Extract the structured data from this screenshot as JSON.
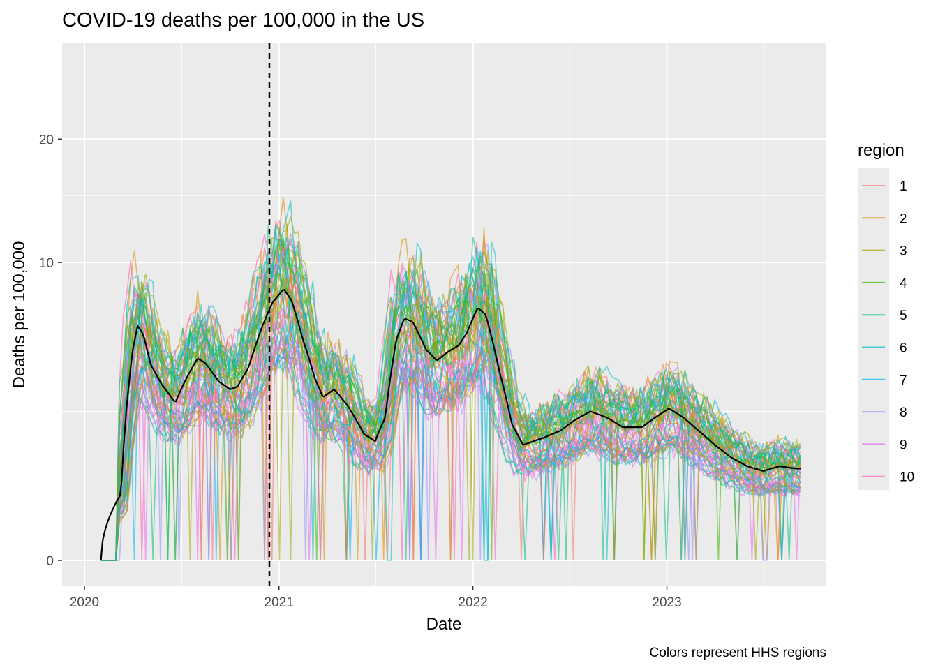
{
  "chart_data": {
    "type": "line",
    "title": "COVID-19 deaths per 100,000 in the US",
    "xlabel": "Date",
    "ylabel": "Deaths per 100,000",
    "caption": "Colors represent HHS regions",
    "x_scale": "date",
    "y_scale": "sqrt",
    "xlim": [
      "2019-11-20",
      "2023-10-28"
    ],
    "ylim": [
      0,
      26.5
    ],
    "x_ticks": [
      {
        "value": "2020-01-01",
        "label": "2020"
      },
      {
        "value": "2021-01-01",
        "label": "2021"
      },
      {
        "value": "2022-01-01",
        "label": "2022"
      },
      {
        "value": "2023-01-01",
        "label": "2023"
      }
    ],
    "y_ticks": [
      {
        "value": 0,
        "label": "0"
      },
      {
        "value": 10,
        "label": "10"
      },
      {
        "value": 20,
        "label": "20"
      }
    ],
    "grid": true,
    "reference_line": {
      "date": "2020-12-14",
      "style": "dashed"
    },
    "legend": {
      "title": "region",
      "position": "right",
      "entries": [
        {
          "label": "1",
          "color": "#F8766D"
        },
        {
          "label": "2",
          "color": "#D89000"
        },
        {
          "label": "3",
          "color": "#A3A500"
        },
        {
          "label": "4",
          "color": "#39B600"
        },
        {
          "label": "5",
          "color": "#00BF7D"
        },
        {
          "label": "6",
          "color": "#00BFC4"
        },
        {
          "label": "7",
          "color": "#00B0F6"
        },
        {
          "label": "8",
          "color": "#9590FF"
        },
        {
          "label": "9",
          "color": "#E76BF3"
        },
        {
          "label": "10",
          "color": "#FF62BC"
        }
      ]
    },
    "national_trend": {
      "color": "#000000",
      "points": [
        [
          "2020-02-01",
          0
        ],
        [
          "2020-03-10",
          0.5
        ],
        [
          "2020-04-01",
          5
        ],
        [
          "2020-04-10",
          6.2
        ],
        [
          "2020-04-20",
          5.8
        ],
        [
          "2020-05-05",
          4.3
        ],
        [
          "2020-05-25",
          3.5
        ],
        [
          "2020-06-20",
          2.8
        ],
        [
          "2020-07-10",
          3.7
        ],
        [
          "2020-08-01",
          4.6
        ],
        [
          "2020-08-15",
          4.4
        ],
        [
          "2020-09-10",
          3.6
        ],
        [
          "2020-10-01",
          3.3
        ],
        [
          "2020-10-15",
          3.4
        ],
        [
          "2020-11-05",
          4.2
        ],
        [
          "2020-12-01",
          6.2
        ],
        [
          "2020-12-20",
          7.5
        ],
        [
          "2021-01-10",
          8.3
        ],
        [
          "2021-01-25",
          7.6
        ],
        [
          "2021-02-15",
          5.5
        ],
        [
          "2021-03-10",
          3.7
        ],
        [
          "2021-03-25",
          3.0
        ],
        [
          "2021-04-15",
          3.3
        ],
        [
          "2021-05-10",
          2.7
        ],
        [
          "2021-06-10",
          1.8
        ],
        [
          "2021-07-01",
          1.6
        ],
        [
          "2021-07-20",
          2.3
        ],
        [
          "2021-08-10",
          5.5
        ],
        [
          "2021-08-25",
          6.6
        ],
        [
          "2021-09-10",
          6.4
        ],
        [
          "2021-10-05",
          5.0
        ],
        [
          "2021-10-25",
          4.5
        ],
        [
          "2021-11-15",
          4.9
        ],
        [
          "2021-12-05",
          5.2
        ],
        [
          "2021-12-20",
          5.8
        ],
        [
          "2022-01-10",
          7.2
        ],
        [
          "2022-01-25",
          6.8
        ],
        [
          "2022-02-20",
          4.0
        ],
        [
          "2022-03-15",
          2.1
        ],
        [
          "2022-04-05",
          1.5
        ],
        [
          "2022-05-15",
          1.7
        ],
        [
          "2022-06-15",
          1.9
        ],
        [
          "2022-07-10",
          2.2
        ],
        [
          "2022-08-10",
          2.5
        ],
        [
          "2022-09-10",
          2.3
        ],
        [
          "2022-10-10",
          2.0
        ],
        [
          "2022-11-15",
          2.0
        ],
        [
          "2022-12-10",
          2.3
        ],
        [
          "2023-01-05",
          2.6
        ],
        [
          "2023-02-01",
          2.3
        ],
        [
          "2023-03-01",
          1.9
        ],
        [
          "2023-04-01",
          1.5
        ],
        [
          "2023-05-01",
          1.2
        ],
        [
          "2023-06-01",
          1.0
        ],
        [
          "2023-07-01",
          0.9
        ],
        [
          "2023-08-01",
          1.0
        ],
        [
          "2023-09-01",
          0.95
        ]
      ]
    }
  }
}
